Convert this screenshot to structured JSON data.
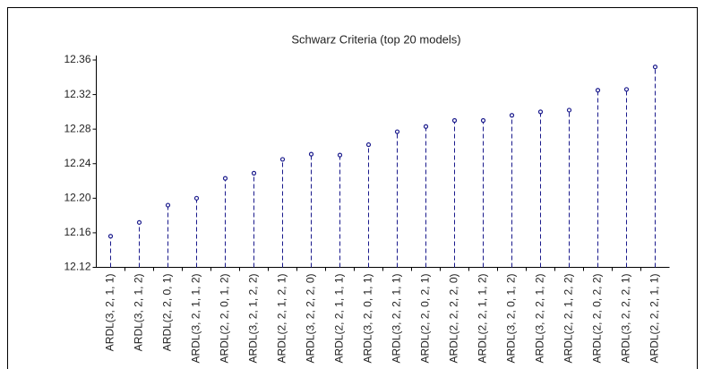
{
  "chart_data": {
    "type": "lollipop",
    "title": "Schwarz Criteria (top 20 models)",
    "categories": [
      "ARDL(3, 2, 1, 1)",
      "ARDL(3, 2, 1, 2)",
      "ARDL(2, 2, 0, 1)",
      "ARDL(3, 2, 1, 1, 2)",
      "ARDL(2, 2, 0, 1, 2)",
      "ARDL(3, 2, 1, 2, 2)",
      "ARDL(2, 2, 1, 2, 1)",
      "ARDL(3, 2, 2, 2, 0)",
      "ARDL(2, 2, 1, 1, 1)",
      "ARDL(3, 2, 0, 1, 1)",
      "ARDL(3, 2, 2, 1, 1)",
      "ARDL(2, 2, 0, 2, 1)",
      "ARDL(2, 2, 2, 2, 0)",
      "ARDL(2, 2, 1, 1, 2)",
      "ARDL(3, 2, 0, 1, 2)",
      "ARDL(3, 2, 2, 1, 2)",
      "ARDL(2, 2, 1, 2, 2)",
      "ARDL(2, 2, 0, 2, 2)",
      "ARDL(3, 2, 2, 2, 1)",
      "ARDL(2, 2, 2, 1, 1)"
    ],
    "values": [
      12.156,
      12.172,
      12.192,
      12.2,
      12.223,
      12.229,
      12.245,
      12.251,
      12.25,
      12.262,
      12.277,
      12.283,
      12.29,
      12.29,
      12.296,
      12.3,
      12.302,
      12.325,
      12.326,
      12.352
    ],
    "color": "#1a1a8c",
    "ylim": [
      12.12,
      12.36
    ],
    "yticks": [
      12.12,
      12.16,
      {
        "value": 12.2,
        "label": "12.20"
      },
      12.24,
      12.28,
      12.32,
      12.36
    ],
    "grid": false
  }
}
